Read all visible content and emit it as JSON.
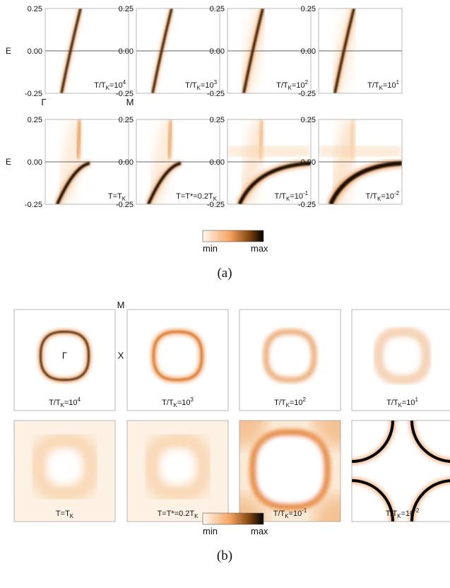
{
  "part_a": {
    "caption": "(a)",
    "axis_label": "E",
    "ticks": [
      "0.25",
      "0.00",
      "-0.25"
    ],
    "k_labels": [
      "Γ",
      "M"
    ],
    "panels": [
      {
        "label": "T/T_K=10^4",
        "temp_index": 0
      },
      {
        "label": "T/T_K=10^3",
        "temp_index": 1
      },
      {
        "label": "T/T_K=10^2",
        "temp_index": 2
      },
      {
        "label": "T/T_K=10^1",
        "temp_index": 3
      },
      {
        "label": "T=T_K",
        "temp_index": 4
      },
      {
        "label": "T=T*=0.2T_K",
        "temp_index": 5
      },
      {
        "label": "T/T_K=10^-1",
        "temp_index": 6
      },
      {
        "label": "T/T_K=10^-2",
        "temp_index": 7
      }
    ],
    "colorbar": {
      "min_label": "min",
      "max_label": "max"
    }
  },
  "part_b": {
    "caption": "(b)",
    "point_labels": [
      "M",
      "Γ",
      "X"
    ],
    "panels": [
      {
        "label": "T/T_K=10^4",
        "temp_index": 0
      },
      {
        "label": "T/T_K=10^3",
        "temp_index": 1
      },
      {
        "label": "T/T_K=10^2",
        "temp_index": 2
      },
      {
        "label": "T/T_K=10^1",
        "temp_index": 3
      },
      {
        "label": "T=T_K",
        "temp_index": 4
      },
      {
        "label": "T=T*=0.2T_K",
        "temp_index": 5
      },
      {
        "label": "T/T_K=10^-1",
        "temp_index": 6
      },
      {
        "label": "T/T_K=10^-2",
        "temp_index": 7
      }
    ],
    "colorbar": {
      "min_label": "min",
      "max_label": "max"
    }
  },
  "colormap": {
    "low": "#ffffff",
    "mid": "#f4a460",
    "high": "#000000"
  }
}
